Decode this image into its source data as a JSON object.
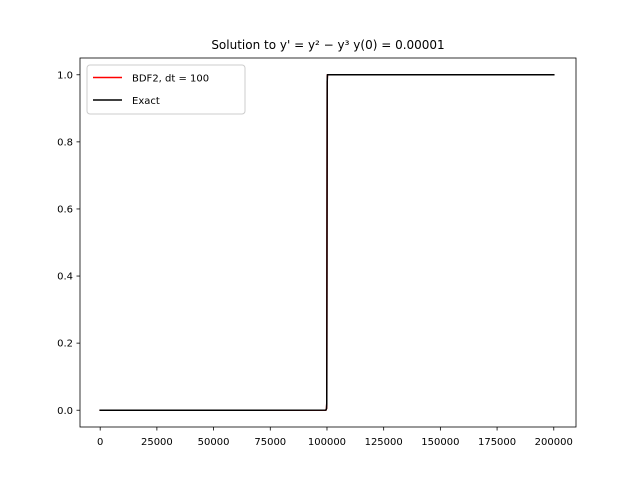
{
  "chart_data": {
    "type": "line",
    "title": "Solution to y' = y² − y³ y(0) = 0.00001",
    "xlim": [
      -8900,
      209800
    ],
    "ylim": [
      -0.05,
      1.05
    ],
    "xticks": [
      0,
      25000,
      50000,
      75000,
      100000,
      125000,
      150000,
      175000,
      200000
    ],
    "yticks": [
      0.0,
      0.2,
      0.4,
      0.6,
      0.8,
      1.0
    ],
    "xtick_labels": [
      "0",
      "25000",
      "50000",
      "75000",
      "100000",
      "125000",
      "150000",
      "175000",
      "200000"
    ],
    "ytick_labels": [
      "0.0",
      "0.2",
      "0.4",
      "0.6",
      "0.8",
      "1.0"
    ],
    "legend_position": "top-left",
    "grid": false,
    "series": [
      {
        "name": "BDF2, dt = 100",
        "color": "#ff0000",
        "x": [
          0,
          50000,
          99500,
          99800,
          99900,
          100000,
          100100,
          100200,
          100500,
          150000,
          200000
        ],
        "y": [
          1e-05,
          2e-05,
          0.0002,
          0.005,
          0.02,
          0.5,
          0.98,
          1.0,
          1.0,
          1.0,
          1.0
        ]
      },
      {
        "name": "Exact",
        "color": "#000000",
        "x": [
          0,
          50000,
          99500,
          99800,
          99900,
          100000,
          100100,
          100200,
          100500,
          150000,
          200000
        ],
        "y": [
          1e-05,
          2e-05,
          0.0002,
          0.005,
          0.02,
          0.5,
          0.98,
          1.0,
          1.0,
          1.0,
          1.0
        ]
      }
    ]
  }
}
